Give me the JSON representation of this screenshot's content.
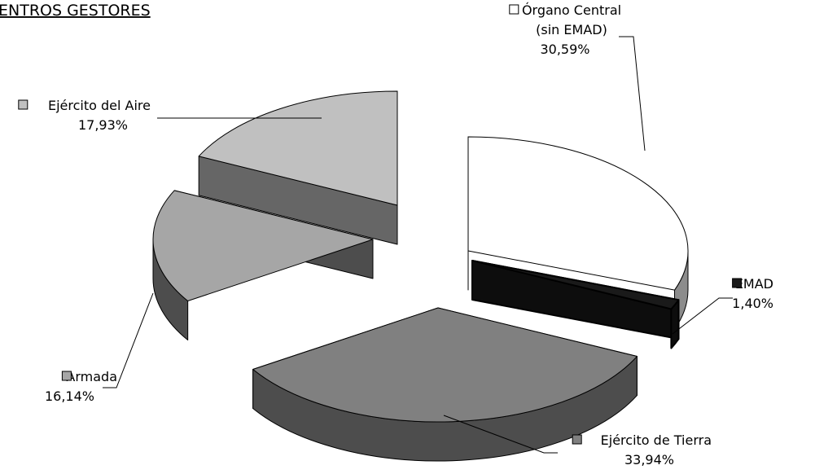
{
  "chart_data": {
    "type": "pie",
    "title": "ENTROS GESTORES",
    "slices": [
      {
        "name": "Órgano Central (sin EMAD)",
        "label_lines": [
          "Órgano Central",
          "(sin EMAD)"
        ],
        "value": 30.59,
        "value_label": "30,59%",
        "color": "#ffffff",
        "side_color": "#8c8c8c"
      },
      {
        "name": "EMAD",
        "label_lines": [
          "EMAD"
        ],
        "value": 1.4,
        "value_label": "1,40%",
        "color": "#1a1a1a",
        "side_color": "#0d0d0d"
      },
      {
        "name": "Ejército de Tierra",
        "label_lines": [
          "Ejército de Tierra"
        ],
        "value": 33.94,
        "value_label": "33,94%",
        "color": "#808080",
        "side_color": "#4d4d4d"
      },
      {
        "name": "Armada",
        "label_lines": [
          "Armada"
        ],
        "value": 16.14,
        "value_label": "16,14%",
        "color": "#a6a6a6",
        "side_color": "#4d4d4d"
      },
      {
        "name": "Ejército del Aire",
        "label_lines": [
          "Ejército del Aire"
        ],
        "value": 17.93,
        "value_label": "17,93%",
        "color": "#c0c0c0",
        "side_color": "#666666"
      }
    ]
  }
}
